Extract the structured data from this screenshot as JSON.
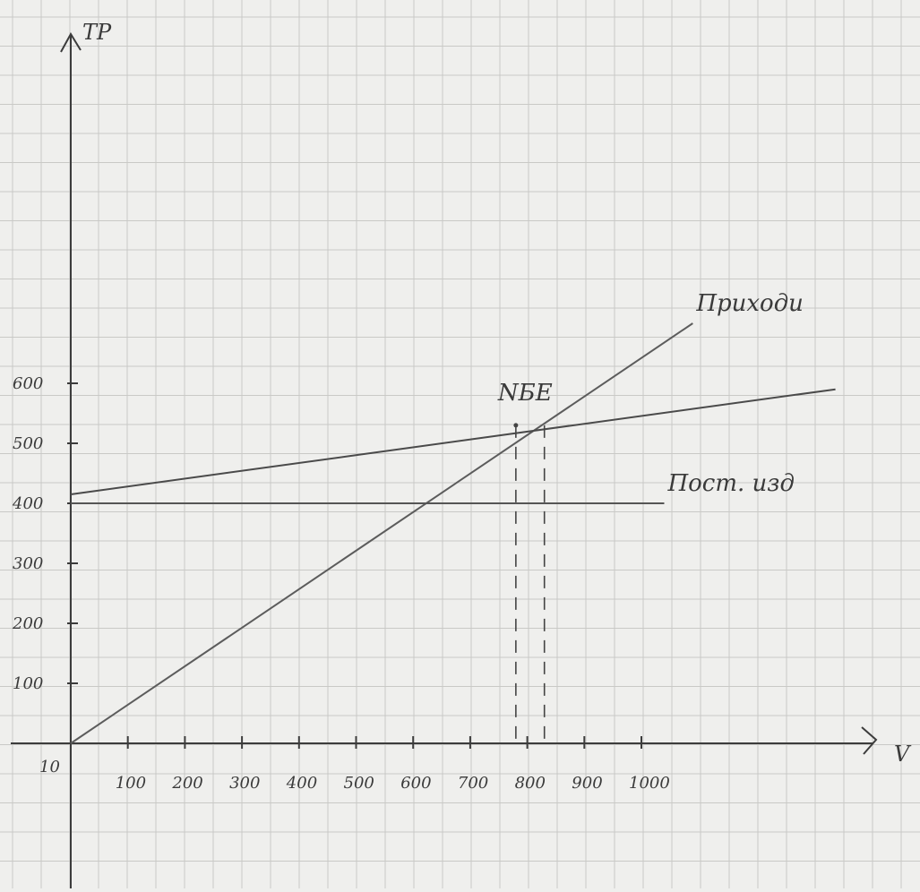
{
  "chart_data": {
    "type": "line",
    "title": "",
    "ylabel": "ТР",
    "xlabel": "V",
    "origin_label": "10",
    "y_ticks": [
      "100",
      "200",
      "300",
      "400",
      "500",
      "600"
    ],
    "x_ticks": [
      "100",
      "200",
      "300",
      "400",
      "500",
      "600",
      "700",
      "800",
      "900",
      "1000"
    ],
    "xlim": [
      0,
      1400
    ],
    "ylim": [
      0,
      1200
    ],
    "grid": true,
    "series": [
      {
        "name": "Приходи",
        "x": [
          0,
          1090
        ],
        "y": [
          0,
          700
        ],
        "color": "#5c5c5c"
      },
      {
        "name": "",
        "x": [
          0,
          1340
        ],
        "y": [
          415,
          590
        ],
        "color": "#4a4a4a"
      },
      {
        "name": "Пост. изд",
        "x": [
          0,
          1040
        ],
        "y": [
          400,
          400
        ],
        "color": "#555555"
      }
    ],
    "annotations": [
      {
        "text": "NБЕ",
        "x": 780,
        "y": 530,
        "dashed_drop": true
      },
      {
        "text": "",
        "x": 830,
        "y": 530,
        "dashed_drop": true
      }
    ]
  }
}
